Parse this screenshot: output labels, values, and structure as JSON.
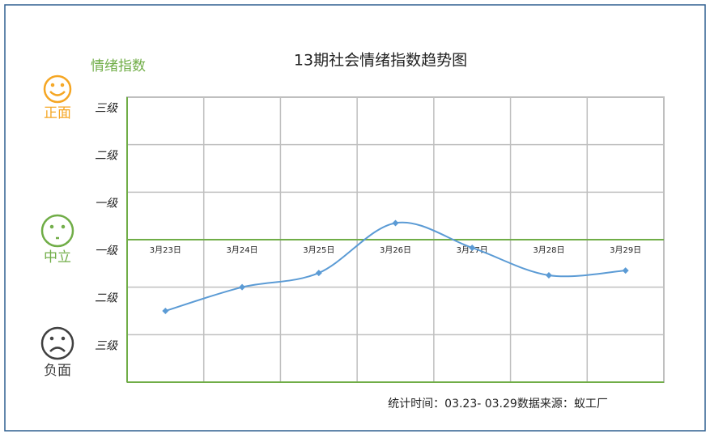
{
  "chart_data": {
    "type": "line",
    "title": "13期社会情绪指数趋势图",
    "y_label": "情绪指数",
    "categories": [
      "3月23日",
      "3月24日",
      "3月25日",
      "3月26日",
      "3月27日",
      "3月28日",
      "3月29日"
    ],
    "series": [
      {
        "color": "#5b9bd5",
        "values": [
          -1.5,
          -1.0,
          -0.7,
          0.35,
          -0.17,
          -0.75,
          -0.65
        ]
      }
    ],
    "ylim": [
      -3,
      3
    ],
    "yticks": [
      {
        "value": 3,
        "label": "三级"
      },
      {
        "value": 2,
        "label": "二级"
      },
      {
        "value": 1,
        "label": "一级"
      },
      {
        "value": 0,
        "label": "一级"
      },
      {
        "value": -1,
        "label": "二级"
      },
      {
        "value": -2,
        "label": "三级"
      }
    ],
    "grid": true,
    "sentiment_labels": [
      {
        "label": "正面",
        "color": "#f5a623"
      },
      {
        "label": "中立",
        "color": "#70ad47"
      },
      {
        "label": "负面",
        "color": "#404040"
      }
    ],
    "footnote": "统计时间：03.23- 03.29数据来源：蚁工厂"
  }
}
